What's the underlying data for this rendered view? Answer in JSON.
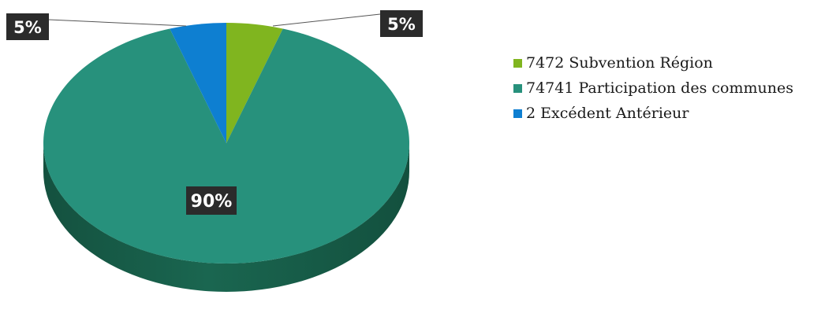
{
  "colors": {
    "green": "#80b51f",
    "teal": "#27917c",
    "blue": "#0e7fd1",
    "teal_side": "#1a6650",
    "label_bg": "#2b2b2b",
    "label_text": "#ffffff",
    "leader_line": "#555555"
  },
  "chart_data": {
    "type": "pie",
    "title": "",
    "style": "3d",
    "legend_position": "right",
    "slices": [
      {
        "name": "7472 Subvention Région",
        "value": 5,
        "label": "5%",
        "color": "#80b51f"
      },
      {
        "name": "74741 Participation des communes",
        "value": 90,
        "label": "90%",
        "color": "#27917c"
      },
      {
        "name": "2 Excédent Antérieur",
        "value": 5,
        "label": "5%",
        "color": "#0e7fd1"
      }
    ]
  }
}
